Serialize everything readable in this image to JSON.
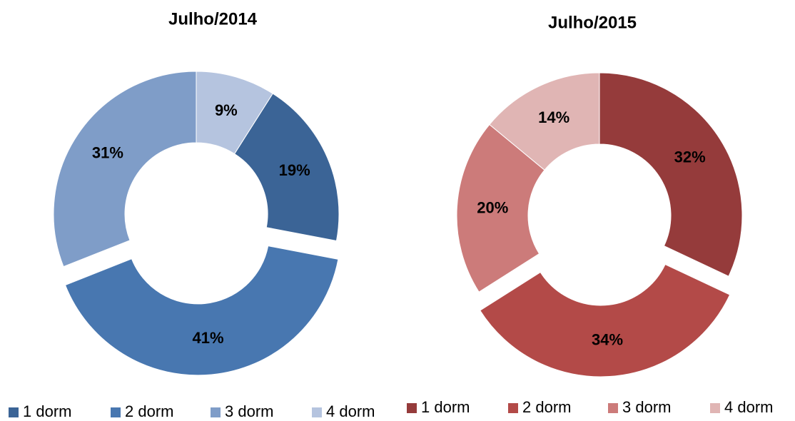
{
  "chart_data": [
    {
      "type": "donut",
      "title": "Julho/2014",
      "categories": [
        "1 dorm",
        "2 dorm",
        "3 dorm",
        "4 dorm"
      ],
      "values": [
        19,
        41,
        31,
        9
      ],
      "value_labels": [
        "19%",
        "41%",
        "31%",
        "9%"
      ],
      "colors": [
        "#3b6496",
        "#4877b0",
        "#7f9dc8",
        "#b5c4df"
      ]
    },
    {
      "type": "donut",
      "title": "Julho/2015",
      "categories": [
        "1 dorm",
        "2 dorm",
        "3 dorm",
        "4 dorm"
      ],
      "values": [
        32,
        34,
        20,
        14
      ],
      "value_labels": [
        "32%",
        "34%",
        "20%",
        "14%"
      ],
      "colors": [
        "#953b3b",
        "#b34a48",
        "#cc7b7a",
        "#e0b5b4"
      ]
    }
  ]
}
